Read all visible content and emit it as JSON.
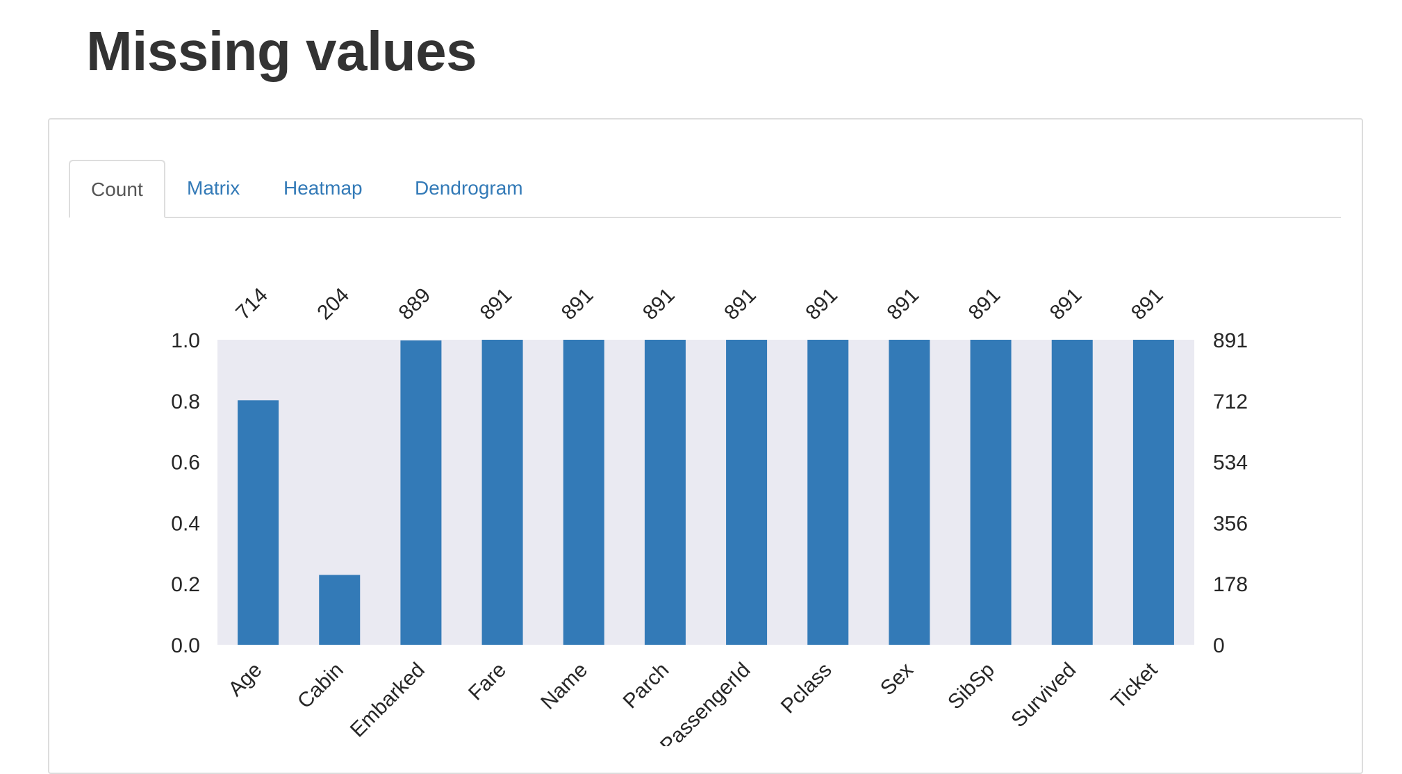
{
  "page": {
    "title": "Missing values"
  },
  "tabs": [
    {
      "label": "Count",
      "active": true
    },
    {
      "label": "Matrix",
      "active": false
    },
    {
      "label": "Heatmap",
      "active": false
    },
    {
      "label": "Dendrogram",
      "active": false
    }
  ],
  "colors": {
    "bar": "#337ab7",
    "plot_background": "#eaeaf2",
    "active_tab_text": "#555555",
    "tab_link": "#337ab7"
  },
  "chart_data": {
    "type": "bar",
    "categories": [
      "Age",
      "Cabin",
      "Embarked",
      "Fare",
      "Name",
      "Parch",
      "PassengerId",
      "Pclass",
      "Sex",
      "SibSp",
      "Survived",
      "Ticket"
    ],
    "counts": [
      714,
      204,
      889,
      891,
      891,
      891,
      891,
      891,
      891,
      891,
      891,
      891
    ],
    "total": 891,
    "ylim": [
      0,
      1
    ],
    "left_ticks": [
      "0.0",
      "0.2",
      "0.4",
      "0.6",
      "0.8",
      "1.0"
    ],
    "right_ticks": [
      "0",
      "178",
      "356",
      "534",
      "712",
      "891"
    ],
    "grid": false
  }
}
